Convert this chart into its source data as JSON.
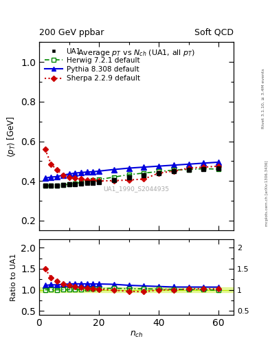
{
  "title_top_left": "200 GeV ppbar",
  "title_top_right": "Soft QCD",
  "main_title": "Average p$_T$ vs N$_{ch}$ (UA1, all p$_T$)",
  "watermark": "UA1_1990_S2044935",
  "right_label_bottom": "mcplots.cern.ch [arXiv:1306.3436]",
  "rivet_label": "Rivet 3.1.10, ≥ 3.4M events",
  "ylabel_main": "⟨p_T⟩ [GeV]",
  "ylabel_ratio": "Ratio to UA1",
  "xlabel": "n$_{ch}$",
  "ua1_x": [
    2,
    4,
    6,
    8,
    10,
    12,
    14,
    16,
    18,
    20,
    25,
    30,
    35,
    40,
    45,
    50,
    55,
    60
  ],
  "ua1_y": [
    0.375,
    0.375,
    0.378,
    0.38,
    0.382,
    0.385,
    0.388,
    0.39,
    0.392,
    0.395,
    0.405,
    0.42,
    0.43,
    0.44,
    0.45,
    0.455,
    0.46,
    0.465
  ],
  "herwig_x": [
    2,
    4,
    6,
    8,
    10,
    12,
    14,
    16,
    18,
    20,
    25,
    30,
    35,
    40,
    45,
    50,
    55,
    60
  ],
  "herwig_y": [
    0.375,
    0.376,
    0.378,
    0.381,
    0.383,
    0.388,
    0.393,
    0.398,
    0.403,
    0.407,
    0.42,
    0.432,
    0.44,
    0.448,
    0.455,
    0.458,
    0.462,
    0.46
  ],
  "pythia_x": [
    2,
    4,
    6,
    8,
    10,
    12,
    14,
    16,
    18,
    20,
    25,
    30,
    35,
    40,
    45,
    50,
    55,
    60
  ],
  "pythia_y": [
    0.415,
    0.42,
    0.422,
    0.43,
    0.435,
    0.44,
    0.443,
    0.445,
    0.447,
    0.45,
    0.458,
    0.465,
    0.47,
    0.475,
    0.48,
    0.485,
    0.49,
    0.495
  ],
  "sherpa_x": [
    2,
    4,
    6,
    8,
    10,
    12,
    14,
    16,
    18,
    20,
    25,
    30,
    35,
    40,
    45,
    50,
    55,
    60
  ],
  "sherpa_y": [
    0.56,
    0.485,
    0.455,
    0.43,
    0.42,
    0.415,
    0.41,
    0.405,
    0.405,
    0.4,
    0.402,
    0.405,
    0.41,
    0.44,
    0.45,
    0.465,
    0.47,
    0.475
  ],
  "ua1_color": "#000000",
  "herwig_color": "#008800",
  "pythia_color": "#0000dd",
  "sherpa_color": "#cc0000",
  "ylim_main": [
    0.15,
    1.1
  ],
  "ylim_ratio": [
    0.4,
    2.2
  ],
  "xlim": [
    0,
    65
  ],
  "band_alpha": 0.35,
  "band_color": "#bbee00"
}
